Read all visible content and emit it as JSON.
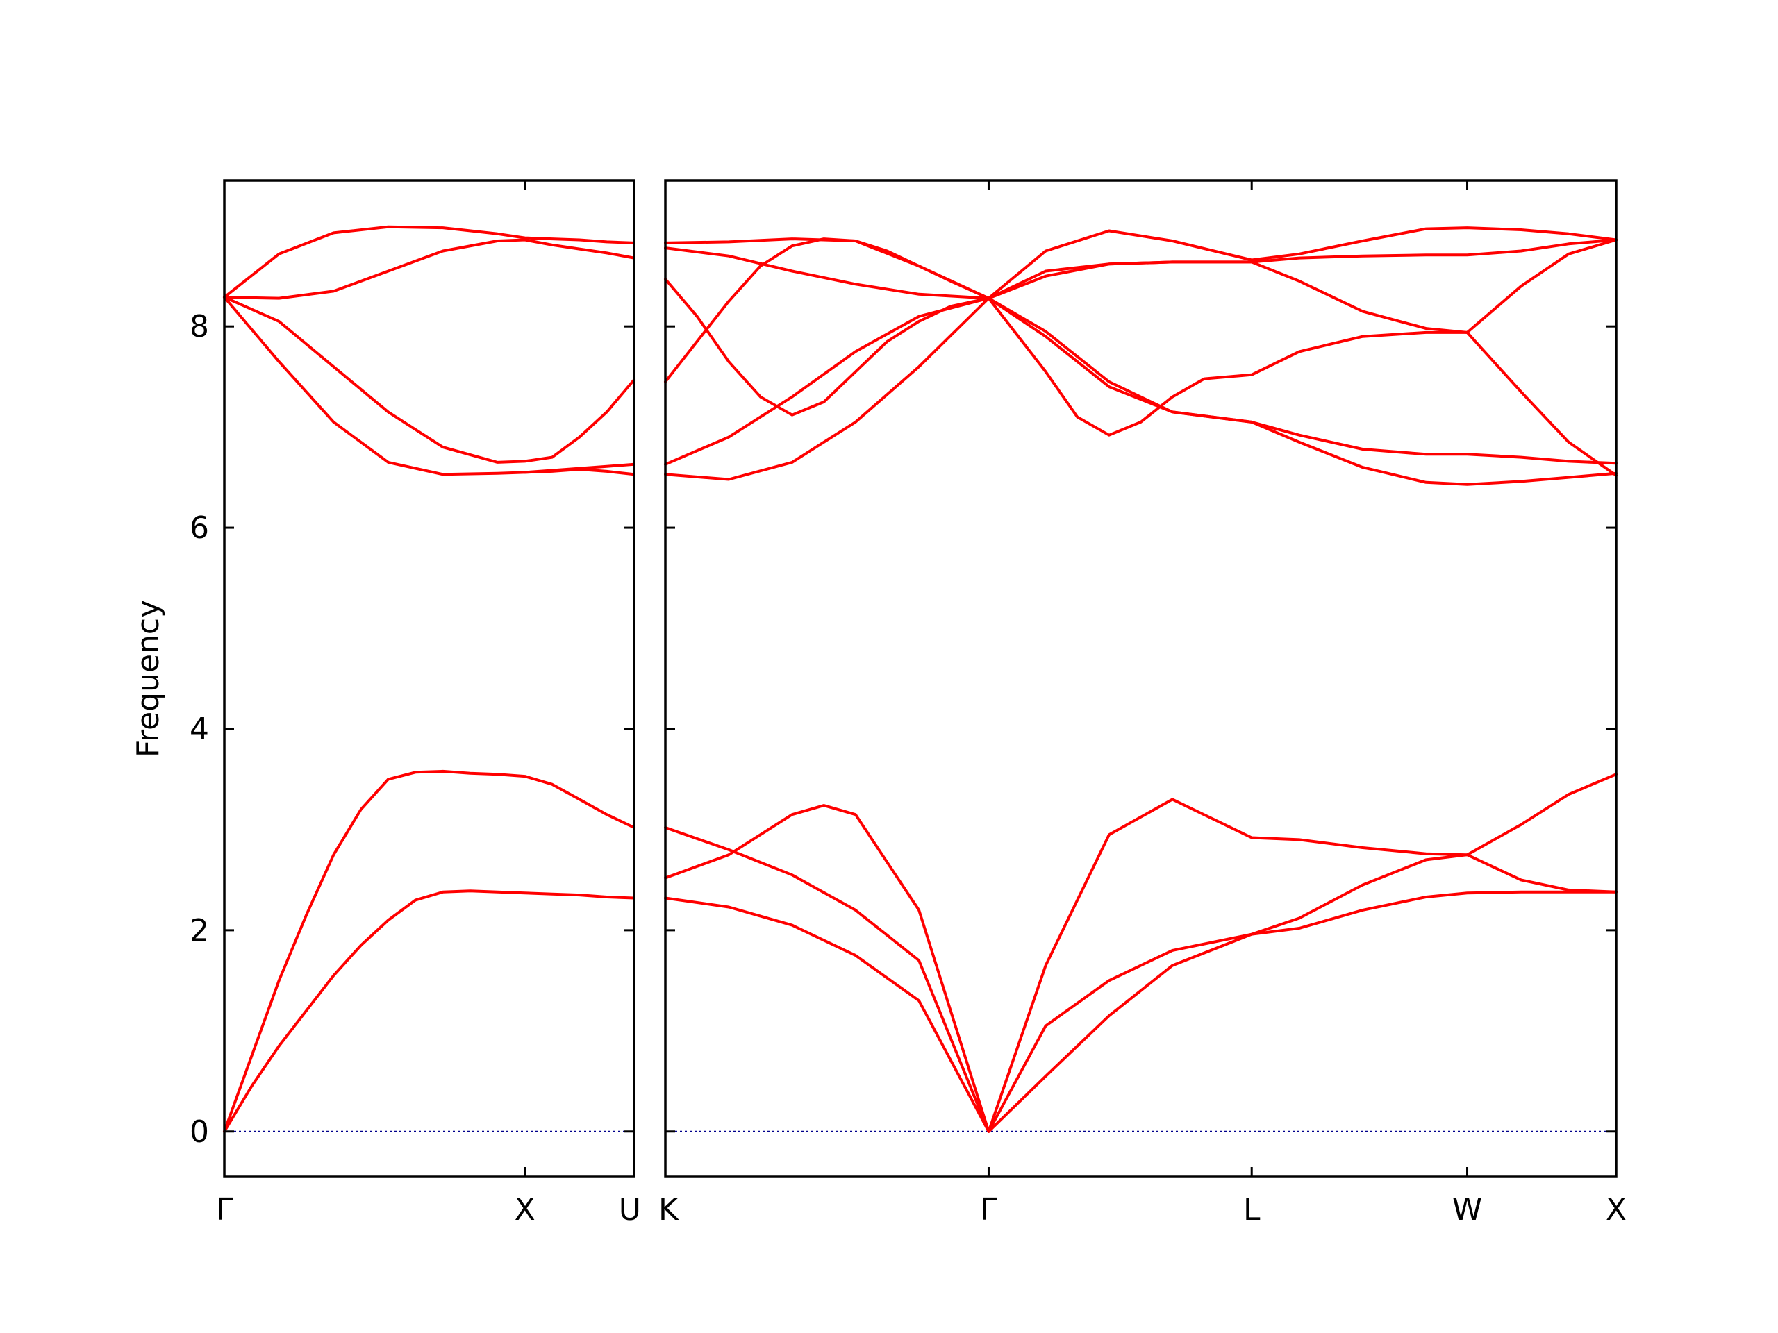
{
  "chart_data": {
    "type": "line",
    "title": "",
    "ylabel": "Frequency",
    "ylim": [
      -0.45,
      9.45
    ],
    "yticks": [
      0,
      2,
      4,
      6,
      8
    ],
    "grid": false,
    "colors": {
      "band": "#ff0000",
      "zero_line": "#00008b",
      "frame": "#000000"
    },
    "panels": [
      {
        "xlim": [
          0,
          1.5
        ],
        "xticks": [
          {
            "x": 0,
            "label": "Γ"
          },
          {
            "x": 1.1,
            "label": "X"
          },
          {
            "x": 1.5,
            "label": "U"
          }
        ],
        "series": [
          {
            "x": [
              0,
              0.1,
              0.2,
              0.3,
              0.4,
              0.5,
              0.6,
              0.7,
              0.8,
              0.9,
              1.0,
              1.1,
              1.2,
              1.3,
              1.4,
              1.5
            ],
            "y": [
              0,
              0.45,
              0.85,
              1.2,
              1.55,
              1.85,
              2.1,
              2.3,
              2.38,
              2.39,
              2.38,
              2.37,
              2.36,
              2.35,
              2.33,
              2.32
            ]
          },
          {
            "x": [
              0,
              0.1,
              0.2,
              0.3,
              0.4,
              0.5,
              0.6,
              0.7,
              0.8,
              0.9,
              1.0,
              1.1,
              1.2,
              1.3,
              1.4,
              1.5
            ],
            "y": [
              0,
              0.75,
              1.5,
              2.15,
              2.75,
              3.2,
              3.5,
              3.57,
              3.58,
              3.56,
              3.55,
              3.53,
              3.45,
              3.3,
              3.15,
              3.02
            ]
          },
          {
            "x": [
              0,
              0.2,
              0.4,
              0.6,
              0.8,
              1.0,
              1.1,
              1.2,
              1.3,
              1.4,
              1.5
            ],
            "y": [
              8.29,
              7.65,
              7.05,
              6.65,
              6.53,
              6.54,
              6.55,
              6.57,
              6.59,
              6.61,
              6.63
            ]
          },
          {
            "x": [
              0,
              0.2,
              0.4,
              0.6,
              0.8,
              1.0,
              1.1,
              1.2,
              1.3,
              1.4,
              1.5
            ],
            "y": [
              8.29,
              8.05,
              7.6,
              7.15,
              6.8,
              6.65,
              6.66,
              6.7,
              6.9,
              7.15,
              7.47
            ]
          },
          {
            "x": [
              0,
              0.2,
              0.4,
              0.6,
              0.8,
              1.0,
              1.1,
              1.2,
              1.3,
              1.4,
              1.5
            ],
            "y": [
              8.29,
              8.28,
              8.35,
              8.55,
              8.75,
              8.85,
              8.86,
              8.81,
              8.77,
              8.73,
              8.68
            ]
          },
          {
            "x": [
              0,
              0.2,
              0.4,
              0.6,
              0.8,
              1.0,
              1.1,
              1.2,
              1.3,
              1.4,
              1.5
            ],
            "y": [
              8.29,
              8.72,
              8.93,
              8.99,
              8.98,
              8.92,
              8.88,
              8.87,
              8.86,
              8.84,
              8.83
            ]
          },
          {
            "x": [
              1.1,
              1.2,
              1.3,
              1.4,
              1.5
            ],
            "y": [
              6.55,
              6.56,
              6.58,
              6.56,
              6.53
            ]
          }
        ],
        "zero_line": true
      },
      {
        "xlim": [
          0,
          3.0
        ],
        "xticks": [
          {
            "x": 0,
            "label": "K"
          },
          {
            "x": 1.02,
            "label": "Γ"
          },
          {
            "x": 1.85,
            "label": "L"
          },
          {
            "x": 2.53,
            "label": "W"
          },
          {
            "x": 3.0,
            "label": "X"
          }
        ],
        "series": [
          {
            "x": [
              0,
              0.2,
              0.4,
              0.6,
              0.8,
              1.02,
              1.2,
              1.4,
              1.6,
              1.85,
              2.0,
              2.2,
              2.4,
              2.53,
              2.7,
              2.85,
              3.0
            ],
            "y": [
              2.32,
              2.23,
              2.05,
              1.75,
              1.3,
              0,
              0.55,
              1.15,
              1.65,
              1.96,
              2.02,
              2.2,
              2.33,
              2.37,
              2.38,
              2.38,
              2.38
            ]
          },
          {
            "x": [
              0,
              0.2,
              0.4,
              0.6,
              0.8,
              1.02,
              1.2,
              1.4,
              1.6,
              1.85,
              2.0,
              2.2,
              2.4,
              2.53,
              2.7,
              2.85,
              3.0
            ],
            "y": [
              3.02,
              2.8,
              2.55,
              2.2,
              1.7,
              0,
              1.65,
              2.95,
              3.3,
              2.92,
              2.9,
              2.82,
              2.76,
              2.75,
              2.5,
              2.4,
              2.38
            ]
          },
          {
            "x": [
              0,
              0.2,
              0.4,
              0.5,
              0.6,
              0.8,
              1.02,
              1.2,
              1.4,
              1.6,
              1.85,
              2.0,
              2.2,
              2.4,
              2.53,
              2.7,
              2.85,
              3.0
            ],
            "y": [
              2.52,
              2.75,
              3.15,
              3.24,
              3.15,
              2.2,
              0,
              1.05,
              1.5,
              1.8,
              1.96,
              2.12,
              2.45,
              2.7,
              2.75,
              3.05,
              3.35,
              3.55
            ]
          },
          {
            "x": [
              0,
              0.2,
              0.4,
              0.6,
              0.8,
              1.02,
              1.2,
              1.4,
              1.6,
              1.85,
              2.0,
              2.2,
              2.4,
              2.53,
              2.7,
              2.85,
              3.0
            ],
            "y": [
              6.53,
              6.48,
              6.65,
              7.05,
              7.6,
              8.28,
              7.95,
              7.45,
              7.15,
              7.05,
              6.85,
              6.6,
              6.45,
              6.43,
              6.46,
              6.5,
              6.54
            ]
          },
          {
            "x": [
              0,
              0.2,
              0.4,
              0.6,
              0.8,
              1.02,
              1.2,
              1.4,
              1.6,
              1.85,
              2.0,
              2.2,
              2.4,
              2.53,
              2.7,
              2.85,
              3.0
            ],
            "y": [
              6.63,
              6.9,
              7.3,
              7.75,
              8.1,
              8.28,
              7.9,
              7.4,
              7.15,
              7.05,
              6.92,
              6.78,
              6.73,
              6.73,
              6.7,
              6.66,
              6.64
            ]
          },
          {
            "x": [
              0,
              0.1,
              0.2,
              0.3,
              0.4,
              0.5,
              0.6,
              0.7,
              0.8,
              0.9,
              1.02,
              1.2,
              1.3,
              1.4,
              1.5,
              1.6,
              1.7,
              1.85,
              2.0,
              2.2,
              2.4,
              2.53,
              2.7,
              2.85,
              3.0
            ],
            "y": [
              8.47,
              8.1,
              7.65,
              7.3,
              7.12,
              7.25,
              7.55,
              7.85,
              8.05,
              8.2,
              8.28,
              7.55,
              7.1,
              6.92,
              7.05,
              7.3,
              7.48,
              7.52,
              7.75,
              7.9,
              7.94,
              7.94,
              7.35,
              6.85,
              6.52
            ]
          },
          {
            "x": [
              0,
              0.1,
              0.2,
              0.3,
              0.4,
              0.5,
              0.6,
              0.7,
              0.8,
              0.9,
              1.02,
              1.2,
              1.4,
              1.6,
              1.85,
              2.0,
              2.2,
              2.4,
              2.53,
              2.7,
              2.85,
              3.0
            ],
            "y": [
              7.45,
              7.85,
              8.25,
              8.6,
              8.8,
              8.87,
              8.85,
              8.75,
              8.6,
              8.45,
              8.28,
              8.5,
              8.62,
              8.64,
              8.64,
              8.45,
              8.15,
              7.98,
              7.94,
              8.4,
              8.72,
              8.86
            ]
          },
          {
            "x": [
              0,
              0.2,
              0.4,
              0.6,
              0.8,
              1.02,
              1.2,
              1.4,
              1.6,
              1.85,
              2.0,
              2.2,
              2.4,
              2.53,
              2.7,
              2.85,
              3.0
            ],
            "y": [
              8.78,
              8.7,
              8.55,
              8.42,
              8.32,
              8.28,
              8.55,
              8.62,
              8.64,
              8.64,
              8.68,
              8.7,
              8.71,
              8.71,
              8.75,
              8.82,
              8.86
            ]
          },
          {
            "x": [
              0,
              0.2,
              0.4,
              0.6,
              0.8,
              1.02,
              1.2,
              1.4,
              1.6,
              1.85,
              2.0,
              2.2,
              2.4,
              2.53,
              2.7,
              2.85,
              3.0
            ],
            "y": [
              8.83,
              8.84,
              8.87,
              8.85,
              8.6,
              8.28,
              8.75,
              8.95,
              8.85,
              8.66,
              8.72,
              8.85,
              8.97,
              8.98,
              8.96,
              8.92,
              8.86
            ]
          }
        ],
        "zero_line": true
      }
    ]
  }
}
